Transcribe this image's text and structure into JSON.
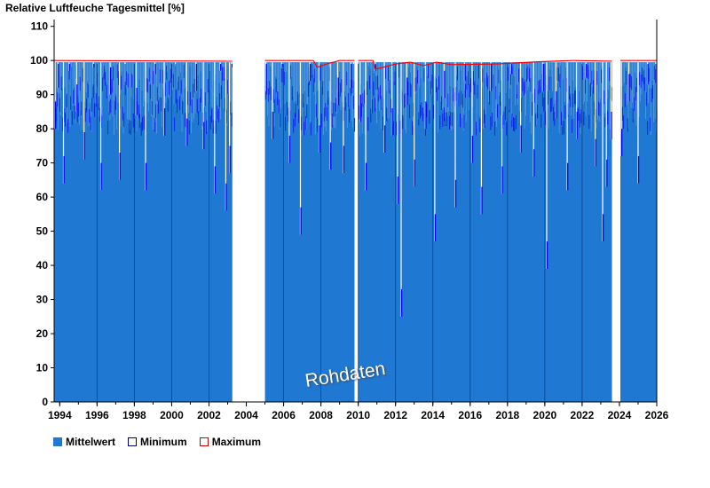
{
  "chart_data": {
    "type": "bar",
    "title": "Relative Luftfeuche Tagesmittel [%]",
    "ylim": [
      0,
      112
    ],
    "xlim": [
      1993.7,
      2026.0
    ],
    "y_ticks": [
      "0",
      "10",
      "20",
      "30",
      "40",
      "50",
      "60",
      "70",
      "80",
      "90",
      "100",
      "110"
    ],
    "x_ticks": [
      "1994",
      "1996",
      "1998",
      "2000",
      "2002",
      "2004",
      "2006",
      "2008",
      "2010",
      "2012",
      "2014",
      "2016",
      "2018",
      "2020",
      "2022",
      "2024",
      "2026"
    ],
    "legend": {
      "placement": "bottom-left",
      "entries": [
        {
          "label": "Mittelwert",
          "style": "filled"
        },
        {
          "label": "Minimum",
          "style": "outline"
        },
        {
          "label": "Maximum",
          "style": "outline"
        }
      ]
    },
    "colors": {
      "mean_fill": "#1f78d1",
      "dip": "#0000ff",
      "max_line": "#ff0000",
      "minimum_swatch": "#000080",
      "maximum_swatch": "#cc0000"
    },
    "data_segments": [
      {
        "start": 1993.7,
        "end": 2003.25
      },
      {
        "start": 2005.0,
        "end": 2009.8
      },
      {
        "start": 2010.0,
        "end": 2023.6
      },
      {
        "start": 2024.05,
        "end": 2026.0
      }
    ],
    "mean_values": [
      {
        "x": 1993.75,
        "y": 80
      },
      {
        "x": 1993.9,
        "y": 92
      },
      {
        "x": 1994.2,
        "y": 64
      },
      {
        "x": 1994.5,
        "y": 97
      },
      {
        "x": 1994.9,
        "y": 85
      },
      {
        "x": 1995.3,
        "y": 71
      },
      {
        "x": 1995.8,
        "y": 98
      },
      {
        "x": 1996.2,
        "y": 62
      },
      {
        "x": 1996.7,
        "y": 90
      },
      {
        "x": 1997.2,
        "y": 65
      },
      {
        "x": 1997.5,
        "y": 99
      },
      {
        "x": 1998.1,
        "y": 84
      },
      {
        "x": 1998.6,
        "y": 62
      },
      {
        "x": 1999.1,
        "y": 96
      },
      {
        "x": 1999.6,
        "y": 78
      },
      {
        "x": 2000.2,
        "y": 99
      },
      {
        "x": 2000.8,
        "y": 75
      },
      {
        "x": 2001.3,
        "y": 91
      },
      {
        "x": 2001.7,
        "y": 74
      },
      {
        "x": 2002.3,
        "y": 61
      },
      {
        "x": 2002.6,
        "y": 97
      },
      {
        "x": 2002.9,
        "y": 56
      },
      {
        "x": 2003.1,
        "y": 67
      },
      {
        "x": 2003.2,
        "y": 98
      },
      {
        "x": 2005.05,
        "y": 91
      },
      {
        "x": 2005.4,
        "y": 77
      },
      {
        "x": 2005.9,
        "y": 98
      },
      {
        "x": 2006.3,
        "y": 70
      },
      {
        "x": 2006.9,
        "y": 49
      },
      {
        "x": 2007.4,
        "y": 94
      },
      {
        "x": 2007.9,
        "y": 73
      },
      {
        "x": 2008.5,
        "y": 68
      },
      {
        "x": 2008.9,
        "y": 87
      },
      {
        "x": 2009.2,
        "y": 67
      },
      {
        "x": 2009.6,
        "y": 92
      },
      {
        "x": 2009.75,
        "y": 99
      },
      {
        "x": 2010.1,
        "y": 82
      },
      {
        "x": 2010.4,
        "y": 62
      },
      {
        "x": 2010.9,
        "y": 97
      },
      {
        "x": 2011.4,
        "y": 73
      },
      {
        "x": 2011.8,
        "y": 78
      },
      {
        "x": 2012.1,
        "y": 58
      },
      {
        "x": 2012.3,
        "y": 25
      },
      {
        "x": 2012.6,
        "y": 87
      },
      {
        "x": 2013.0,
        "y": 63
      },
      {
        "x": 2013.6,
        "y": 80
      },
      {
        "x": 2014.1,
        "y": 47
      },
      {
        "x": 2014.6,
        "y": 89
      },
      {
        "x": 2015.2,
        "y": 57
      },
      {
        "x": 2015.7,
        "y": 94
      },
      {
        "x": 2016.1,
        "y": 70
      },
      {
        "x": 2016.6,
        "y": 55
      },
      {
        "x": 2017.1,
        "y": 91
      },
      {
        "x": 2017.7,
        "y": 61
      },
      {
        "x": 2018.2,
        "y": 96
      },
      {
        "x": 2018.7,
        "y": 73
      },
      {
        "x": 2019.4,
        "y": 66
      },
      {
        "x": 2019.9,
        "y": 91
      },
      {
        "x": 2020.1,
        "y": 39
      },
      {
        "x": 2020.6,
        "y": 83
      },
      {
        "x": 2021.2,
        "y": 62
      },
      {
        "x": 2021.7,
        "y": 77
      },
      {
        "x": 2022.2,
        "y": 95
      },
      {
        "x": 2022.7,
        "y": 69
      },
      {
        "x": 2023.1,
        "y": 47
      },
      {
        "x": 2023.3,
        "y": 63
      },
      {
        "x": 2023.55,
        "y": 77
      },
      {
        "x": 2024.1,
        "y": 72
      },
      {
        "x": 2024.5,
        "y": 88
      },
      {
        "x": 2025.0,
        "y": 64
      },
      {
        "x": 2025.5,
        "y": 93
      },
      {
        "x": 2025.95,
        "y": 99
      }
    ],
    "max_values": [
      {
        "x": 1993.7,
        "y": 100
      },
      {
        "x": 2003.25,
        "y": 99.8
      },
      {
        "x": 2005.0,
        "y": 100
      },
      {
        "x": 2006.5,
        "y": 100
      },
      {
        "x": 2007.6,
        "y": 100
      },
      {
        "x": 2007.8,
        "y": 98
      },
      {
        "x": 2008.3,
        "y": 99
      },
      {
        "x": 2009.0,
        "y": 100
      },
      {
        "x": 2009.8,
        "y": 100
      },
      {
        "x": 2010.0,
        "y": 100
      },
      {
        "x": 2010.8,
        "y": 100
      },
      {
        "x": 2010.9,
        "y": 97.5
      },
      {
        "x": 2011.2,
        "y": 97.8
      },
      {
        "x": 2012.0,
        "y": 99
      },
      {
        "x": 2012.8,
        "y": 99.5
      },
      {
        "x": 2013.5,
        "y": 98.5
      },
      {
        "x": 2014.2,
        "y": 99.5
      },
      {
        "x": 2015.0,
        "y": 98.8
      },
      {
        "x": 2017.5,
        "y": 99
      },
      {
        "x": 2019.5,
        "y": 99.6
      },
      {
        "x": 2021.5,
        "y": 100
      },
      {
        "x": 2023.6,
        "y": 99.8
      },
      {
        "x": 2024.05,
        "y": 100
      },
      {
        "x": 2026.0,
        "y": 100
      }
    ],
    "watermark": "Rohdaten"
  }
}
